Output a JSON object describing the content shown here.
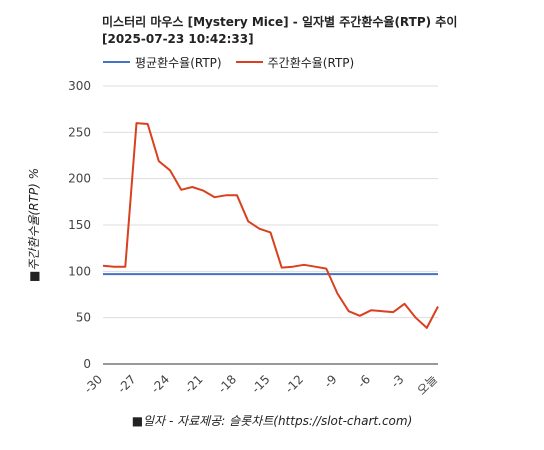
{
  "chart_data": {
    "type": "line",
    "title_line1": "미스터리 마우스 [Mystery Mice] - 일자별 주간환수율(RTP) 추이",
    "title_line2": "[2025-07-23 10:42:33]",
    "xlabel": "■일자 - 자료제공: 슬롯차트(https://slot-chart.com)",
    "ylabel": "■주간환수율(RTP) %",
    "ylim": [
      0,
      300
    ],
    "yticks": [
      "0",
      "50",
      "100",
      "150",
      "200",
      "250",
      "300"
    ],
    "xticks": [
      "-30",
      "-27",
      "-24",
      "-21",
      "-18",
      "-15",
      "-12",
      "-9",
      "-6",
      "-3",
      "오늘"
    ],
    "grid": true,
    "legend_position": "top-left",
    "x": [
      -30,
      -29,
      -28,
      -27,
      -26,
      -25,
      -24,
      -23,
      -22,
      -21,
      -20,
      -19,
      -18,
      -17,
      -16,
      -15,
      -14,
      -13,
      -12,
      -11,
      -10,
      -9,
      -8,
      -7,
      -6,
      -5,
      -4,
      -3,
      -2,
      -1,
      0
    ],
    "series": [
      {
        "name": "평균환수율(RTP)",
        "color": "#4472c4",
        "values": [
          97,
          97,
          97,
          97,
          97,
          97,
          97,
          97,
          97,
          97,
          97,
          97,
          97,
          97,
          97,
          97,
          97,
          97,
          97,
          97,
          97,
          97,
          97,
          97,
          97,
          97,
          97,
          97,
          97,
          97,
          97
        ]
      },
      {
        "name": "주간환수율(RTP)",
        "color": "#d9411e",
        "values": [
          106,
          105,
          105,
          260,
          259,
          219,
          209,
          188,
          191,
          187,
          180,
          182,
          182,
          154,
          146,
          142,
          104,
          105,
          107,
          105,
          103,
          76,
          57,
          52,
          58,
          57,
          56,
          65,
          50,
          39,
          62
        ]
      }
    ]
  }
}
